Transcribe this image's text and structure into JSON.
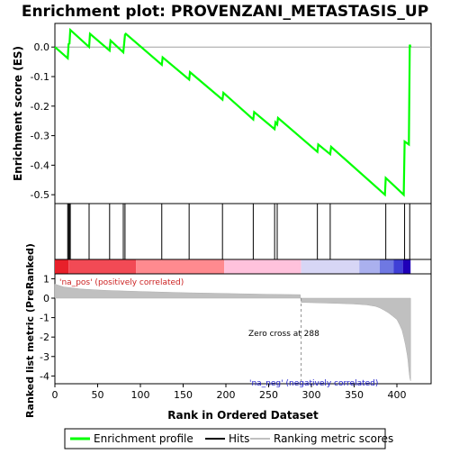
{
  "chart_data": {
    "type": "line",
    "title": "Enrichment plot: PROVENZANI_METASTASIS_UP",
    "top_panel": {
      "ylabel": "Enrichment score (ES)",
      "ylim": [
        -0.53,
        0.08
      ],
      "yticks": [
        0.0,
        -0.1,
        -0.2,
        -0.3,
        -0.4,
        -0.5
      ],
      "ytick_labels": [
        "0.0",
        "-0.1",
        "-0.2",
        "-0.3",
        "-0.4",
        "-0.5"
      ],
      "series": [
        {
          "name": "Enrichment profile",
          "color": "#00ff00",
          "x": [
            0,
            15,
            16,
            17,
            18,
            40,
            41,
            64,
            65,
            80,
            81,
            82,
            83,
            125,
            126,
            157,
            158,
            196,
            197,
            232,
            233,
            257,
            258,
            260,
            261,
            307,
            308,
            322,
            323,
            386,
            387,
            408,
            409,
            414,
            415,
            416
          ],
          "y": [
            0.0,
            -0.038,
            0.01,
            0.012,
            0.058,
            0.0,
            0.045,
            -0.012,
            0.022,
            -0.018,
            0.01,
            0.042,
            0.045,
            -0.06,
            -0.035,
            -0.11,
            -0.085,
            -0.178,
            -0.155,
            -0.245,
            -0.22,
            -0.278,
            -0.255,
            -0.262,
            -0.24,
            -0.355,
            -0.33,
            -0.363,
            -0.338,
            -0.5,
            -0.443,
            -0.5,
            -0.32,
            -0.33,
            0.008,
            0.0
          ]
        }
      ],
      "hits": [
        15,
        16,
        17,
        18,
        40,
        64,
        80,
        82,
        125,
        157,
        196,
        232,
        257,
        260,
        307,
        322,
        387,
        409,
        415
      ]
    },
    "heat_bar": {
      "segments": [
        {
          "start": 0,
          "end": 16,
          "color": "#e8202a"
        },
        {
          "start": 16,
          "end": 95,
          "color": "#f24a55"
        },
        {
          "start": 95,
          "end": 198,
          "color": "#ff8a8f"
        },
        {
          "start": 198,
          "end": 288,
          "color": "#ffc2dc"
        },
        {
          "start": 288,
          "end": 356,
          "color": "#d7d6f5"
        },
        {
          "start": 356,
          "end": 380,
          "color": "#aab0ee"
        },
        {
          "start": 380,
          "end": 396,
          "color": "#6f78e2"
        },
        {
          "start": 396,
          "end": 407,
          "color": "#3f3fd6"
        },
        {
          "start": 407,
          "end": 416,
          "color": "#1f00b8"
        }
      ]
    },
    "bottom_panel": {
      "ylabel": "Ranked list metric (PreRanked)",
      "xlabel": "Rank in Ordered Dataset",
      "xlim": [
        0,
        440
      ],
      "ylim": [
        -4.4,
        1.25
      ],
      "xticks": [
        0,
        50,
        100,
        150,
        200,
        250,
        300,
        350,
        400
      ],
      "xtick_labels": [
        "0",
        "50",
        "100",
        "150",
        "200",
        "250",
        "300",
        "350",
        "400"
      ],
      "yticks": [
        1,
        0,
        -1,
        -2,
        -3,
        -4
      ],
      "ytick_labels": [
        "1",
        "0",
        "-1",
        "-2",
        "-3",
        "-4"
      ],
      "metric": {
        "x": [
          0,
          10,
          30,
          60,
          100,
          150,
          200,
          250,
          287,
          288,
          300,
          330,
          350,
          365,
          375,
          380,
          385,
          390,
          395,
          400,
          403,
          406,
          408,
          410,
          412,
          413,
          414,
          415,
          416
        ],
        "y": [
          0.72,
          0.58,
          0.47,
          0.4,
          0.34,
          0.28,
          0.24,
          0.2,
          0.18,
          -0.22,
          -0.23,
          -0.27,
          -0.3,
          -0.35,
          -0.42,
          -0.5,
          -0.62,
          -0.75,
          -0.92,
          -1.1,
          -1.35,
          -1.65,
          -2.0,
          -2.4,
          -2.9,
          -3.2,
          -3.7,
          -4.1,
          -4.25
        ]
      },
      "zero_cross_x": 288,
      "annotations": {
        "pos": "'na_pos' (positively correlated)",
        "neg": "'na_neg' (negatively correlated)",
        "zero_cross": "Zero cross at 288"
      }
    },
    "legend": {
      "placement": "bottom",
      "entries": [
        {
          "label": "Enrichment profile",
          "color": "#00ff00"
        },
        {
          "label": "Hits",
          "color": "#000000"
        },
        {
          "label": "Ranking metric scores",
          "color": "#c0c0c0"
        }
      ]
    }
  }
}
